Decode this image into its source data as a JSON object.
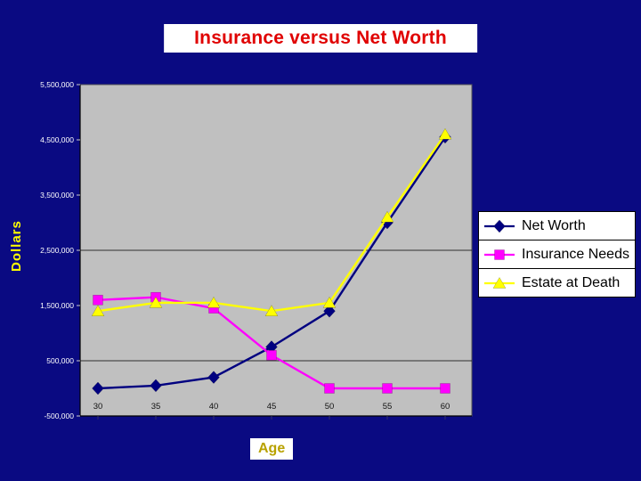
{
  "slide": {
    "title": "Insurance versus Net Worth",
    "title_color": "#e00000",
    "background_color": "#0a0a82"
  },
  "chart_data": {
    "type": "line",
    "title": "Insurance versus Net Worth",
    "xlabel": "Age",
    "ylabel": "Dollars",
    "x": [
      30,
      35,
      40,
      45,
      50,
      55,
      60
    ],
    "ylim": [
      -500000,
      5500000
    ],
    "ytick_interval": 1000000,
    "ytick_labels": [
      "5,500,000",
      "4,500,000",
      "3,500,000",
      "2,500,000",
      "1,500,000",
      "500,000",
      "-500,000"
    ],
    "gridlines_at": [
      2500000,
      500000
    ],
    "plot_bg": "#c0c0c0",
    "grid_on": true,
    "legend_position": "right",
    "series": [
      {
        "name": "Net Worth",
        "color": "#000080",
        "marker": "diamond",
        "values": [
          0,
          50000,
          200000,
          750000,
          1400000,
          3000000,
          4550000
        ]
      },
      {
        "name": "Insurance Needs",
        "color": "#ff00ff",
        "marker": "square",
        "values": [
          1600000,
          1650000,
          1450000,
          600000,
          0,
          0,
          0
        ]
      },
      {
        "name": "Estate at Death",
        "color": "#ffff00",
        "marker": "triangle",
        "values": [
          1400000,
          1550000,
          1550000,
          1400000,
          1550000,
          3100000,
          4600000
        ]
      }
    ]
  }
}
